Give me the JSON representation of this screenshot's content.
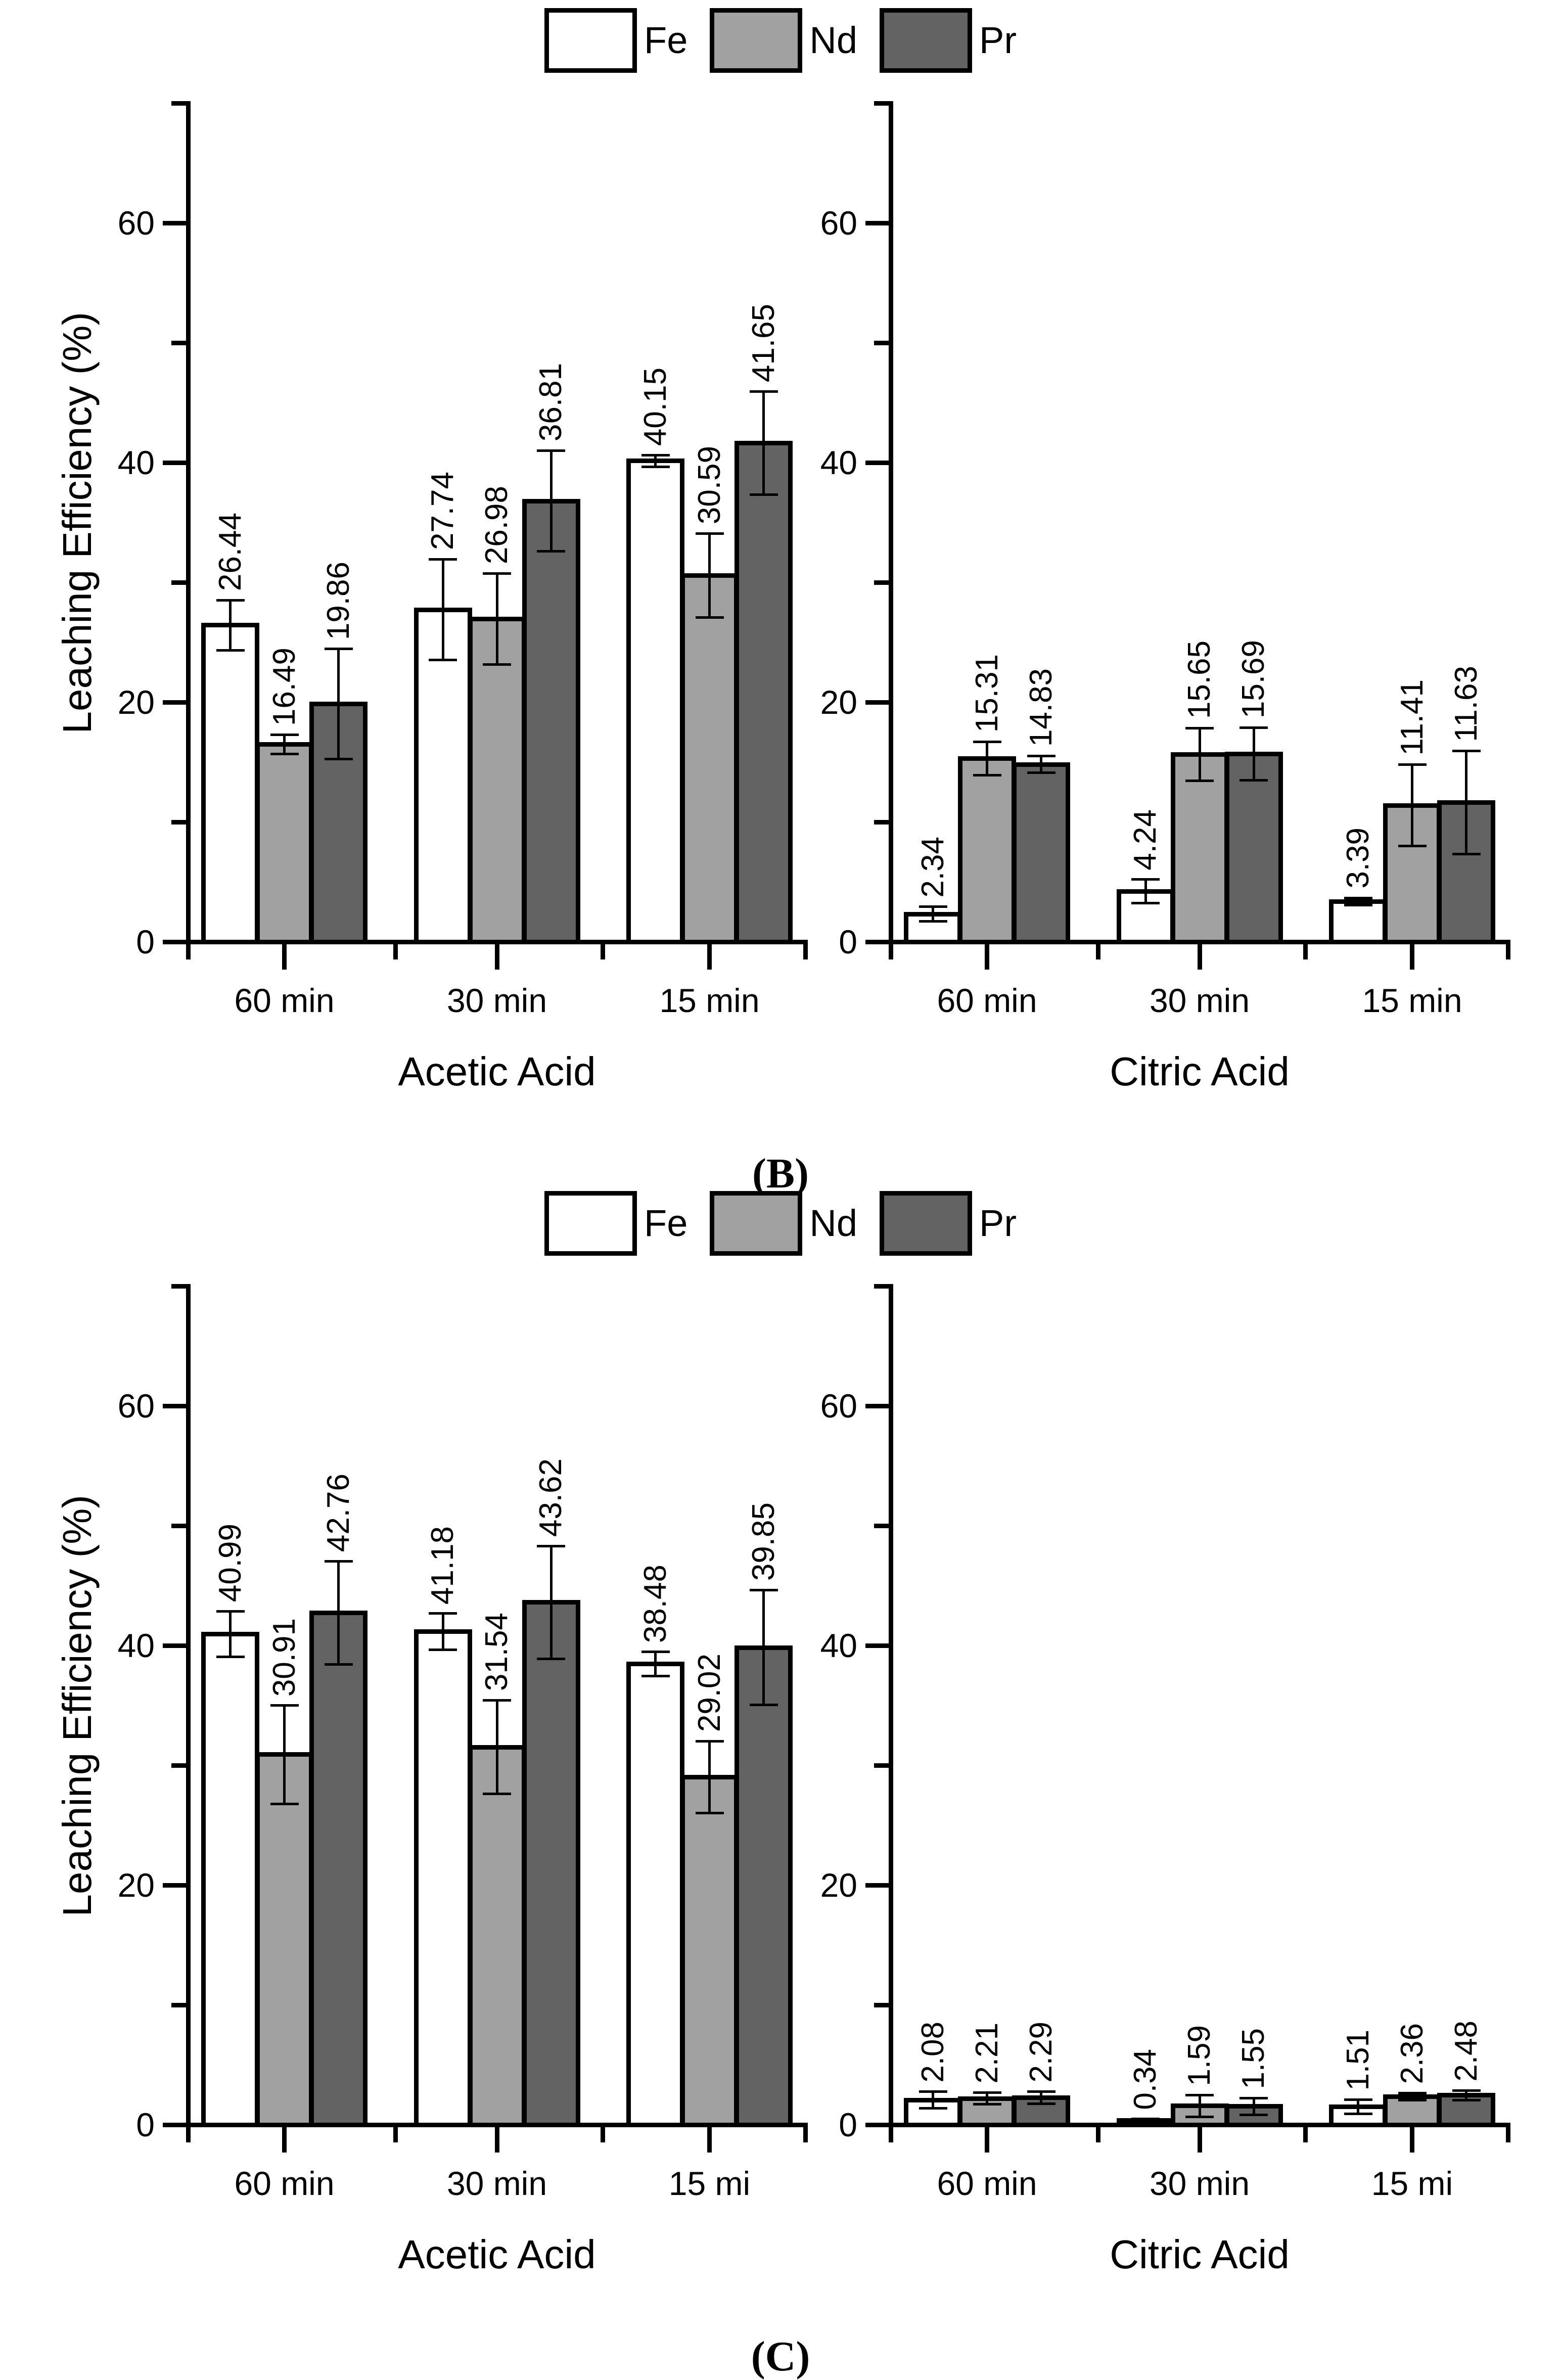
{
  "figure": {
    "ylabel": "Leaching Efficiency (%)",
    "legend": [
      "Fe",
      "Nd",
      "Pr"
    ],
    "colors": {
      "Fe": "#ffffff",
      "Nd": "#a1a1a1",
      "Pr": "#636363"
    },
    "ylim": [
      0,
      70
    ],
    "yticks_major": [
      0,
      20,
      40,
      60
    ],
    "yticks_minor": [
      10,
      30,
      50,
      70
    ],
    "grid": "off",
    "legend_position": "top-center"
  },
  "panels": [
    {
      "id": "b",
      "label": "(B)",
      "charts": [
        0,
        1
      ]
    },
    {
      "id": "c",
      "label": "(C)",
      "charts": [
        2,
        3
      ]
    }
  ],
  "chart_data": [
    {
      "type": "bar",
      "panel": "(B)",
      "title": "Acetic Acid",
      "ylabel": "Leaching Efficiency (%)",
      "ylim": [
        0,
        70
      ],
      "yticks": [
        0,
        20,
        40,
        60
      ],
      "categories": [
        "60 min",
        "30 min",
        "15 min"
      ],
      "series": [
        {
          "name": "Fe",
          "values": [
            26.44,
            27.74,
            40.15
          ],
          "errors": [
            2.1,
            4.2,
            0.5
          ]
        },
        {
          "name": "Nd",
          "values": [
            16.49,
            26.98,
            30.59
          ],
          "errors": [
            0.8,
            3.8,
            3.5
          ]
        },
        {
          "name": "Pr",
          "values": [
            19.86,
            36.81,
            41.65
          ],
          "errors": [
            4.6,
            4.2,
            4.3
          ]
        }
      ],
      "bar_labels": true
    },
    {
      "type": "bar",
      "panel": "(B)",
      "title": "Citric Acid",
      "ylabel": "",
      "ylim": [
        0,
        70
      ],
      "yticks": [
        0,
        20,
        40,
        60
      ],
      "categories": [
        "60 min",
        "30 min",
        "15 min"
      ],
      "series": [
        {
          "name": "Fe",
          "values": [
            2.34,
            4.24,
            3.39
          ],
          "errors": [
            0.6,
            1.0,
            0.3
          ]
        },
        {
          "name": "Nd",
          "values": [
            15.31,
            15.65,
            11.41
          ],
          "errors": [
            1.4,
            2.2,
            3.4
          ]
        },
        {
          "name": "Pr",
          "values": [
            14.83,
            15.69,
            11.63
          ],
          "errors": [
            0.7,
            2.2,
            4.3
          ]
        }
      ],
      "bar_labels": true
    },
    {
      "type": "bar",
      "panel": "(C)",
      "title": "Acetic Acid",
      "ylabel": "Leaching Efficiency (%)",
      "ylim": [
        0,
        70
      ],
      "yticks": [
        0,
        20,
        40,
        60
      ],
      "categories": [
        "60 min",
        "30 min",
        "15 mi"
      ],
      "series": [
        {
          "name": "Fe",
          "values": [
            40.99,
            41.18,
            38.48
          ],
          "errors": [
            1.9,
            1.5,
            1.0
          ]
        },
        {
          "name": "Nd",
          "values": [
            30.91,
            31.54,
            29.02
          ],
          "errors": [
            4.1,
            3.9,
            3.0
          ]
        },
        {
          "name": "Pr",
          "values": [
            42.76,
            43.62,
            39.85
          ],
          "errors": [
            4.3,
            4.7,
            4.8
          ]
        }
      ],
      "bar_labels": true
    },
    {
      "type": "bar",
      "panel": "(C)",
      "title": "Citric Acid",
      "ylabel": "",
      "ylim": [
        0,
        70
      ],
      "yticks": [
        0,
        20,
        40,
        60
      ],
      "categories": [
        "60 min",
        "30 min",
        "15 mi"
      ],
      "series": [
        {
          "name": "Fe",
          "values": [
            2.08,
            0.34,
            1.51
          ],
          "errors": [
            0.7,
            0.15,
            0.6
          ]
        },
        {
          "name": "Nd",
          "values": [
            2.21,
            1.59,
            2.36
          ],
          "errors": [
            0.5,
            0.9,
            0.3
          ]
        },
        {
          "name": "Pr",
          "values": [
            2.29,
            1.55,
            2.48
          ],
          "errors": [
            0.5,
            0.7,
            0.4
          ]
        }
      ],
      "bar_labels": true
    }
  ]
}
